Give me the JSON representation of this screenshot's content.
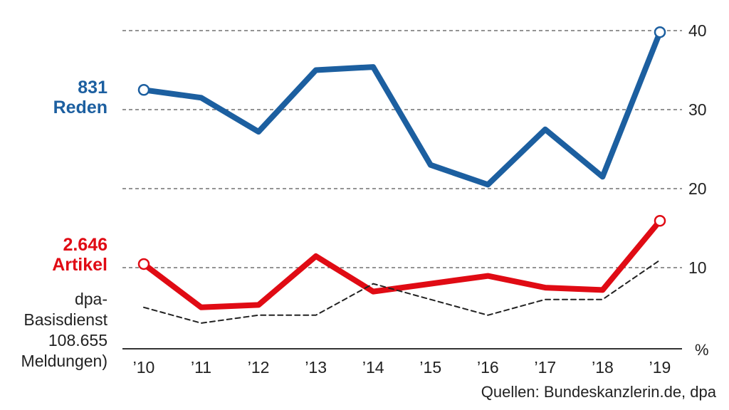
{
  "chart_data": {
    "type": "line",
    "x": [
      "’10",
      "’11",
      "’12",
      "’13",
      "’14",
      "’15",
      "’16",
      "’17",
      "’18",
      "’19"
    ],
    "y_ticks": [
      "40",
      "30",
      "20",
      "10"
    ],
    "y_unit_label": "%",
    "grid": "dashed horizontal",
    "series": [
      {
        "name": "Reden",
        "total": "831",
        "color": "#1c5fa0",
        "scale": [
          20,
          40
        ],
        "values": [
          32.5,
          31.5,
          27.2,
          35,
          35.4,
          23,
          20.5,
          27.5,
          21.5,
          39.8
        ]
      },
      {
        "name": "Artikel",
        "total": "2.646",
        "color": "#e00b14",
        "scale": [
          0,
          20
        ],
        "values": [
          10.5,
          5,
          5.3,
          11.5,
          7,
          8,
          9,
          7.5,
          7.2,
          16
        ]
      },
      {
        "name": "dpa-Basisdienst 108.655 Meldungen)",
        "style": "dashed",
        "color": "#222222",
        "scale": [
          0,
          20
        ],
        "values": [
          5,
          3,
          4,
          4,
          8,
          6,
          4,
          6,
          6,
          11
        ]
      }
    ]
  },
  "labels": {
    "reden_total": "831",
    "reden_name": "Reden",
    "artikel_total": "2.646",
    "artikel_name": "Artikel",
    "dpa_line1": "dpa-",
    "dpa_line2": "Basisdienst",
    "dpa_line3": "108.655",
    "dpa_line4": "Meldungen)",
    "source": "Quellen: Bundeskanzlerin.de, dpa"
  }
}
